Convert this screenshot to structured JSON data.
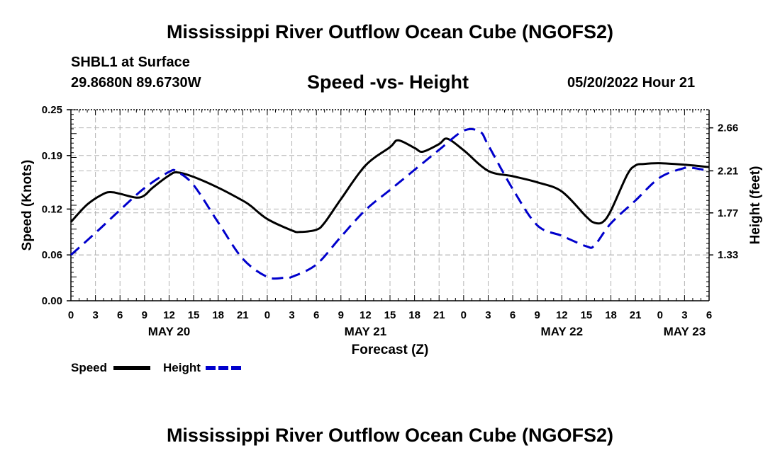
{
  "header": {
    "title": "Mississippi River Outflow Ocean Cube (NGOFS2)",
    "station": "SHBL1 at Surface",
    "coords": "29.8680N  89.6730W",
    "subtitle": "Speed -vs- Height",
    "datetime": "05/20/2022 Hour 21",
    "footer_title": "Mississippi River Outflow Ocean Cube (NGOFS2)"
  },
  "legend": {
    "speed_label": "Speed",
    "height_label": "Height"
  },
  "colors": {
    "speed": "#000000",
    "height": "#0000cc",
    "grid": "#b4b4b4"
  },
  "chart_data": {
    "type": "line",
    "title": "Speed -vs- Height",
    "xlabel": "Forecast (Z)",
    "ylabel": "Speed (Knots)",
    "y2label": "Height (feet)",
    "xlim": [
      0,
      78
    ],
    "ylim": [
      0,
      0.25
    ],
    "y2lim": [
      0.85,
      2.85
    ],
    "x_ticks": [
      0,
      3,
      6,
      9,
      12,
      15,
      18,
      21,
      24,
      27,
      30,
      33,
      36,
      39,
      42,
      45,
      48,
      51,
      54,
      57,
      60,
      63,
      66,
      69,
      72,
      75,
      78
    ],
    "x_tick_labels": [
      "0",
      "3",
      "6",
      "9",
      "12",
      "15",
      "18",
      "21",
      "0",
      "3",
      "6",
      "9",
      "12",
      "15",
      "18",
      "21",
      "0",
      "3",
      "6",
      "9",
      "12",
      "15",
      "18",
      "21",
      "0",
      "3",
      "6"
    ],
    "day_labels": [
      {
        "hour": 12,
        "label": "MAY 20"
      },
      {
        "hour": 36,
        "label": "MAY 21"
      },
      {
        "hour": 60,
        "label": "MAY 22"
      },
      {
        "hour": 75,
        "label": "MAY 23"
      }
    ],
    "y_ticks": [
      0.0,
      0.06,
      0.12,
      0.19,
      0.25
    ],
    "y_tick_labels": [
      "0.00",
      "0.06",
      "0.12",
      "0.19",
      "0.25"
    ],
    "y2_ticks": [
      1.33,
      1.77,
      2.21,
      2.66
    ],
    "y2_tick_labels": [
      "1.33",
      "1.77",
      "2.21",
      "2.66"
    ],
    "grid": true,
    "legend_position": "bottom-left",
    "series": [
      {
        "name": "Speed",
        "axis": "left",
        "style": "solid",
        "x": [
          0,
          2,
          4,
          5,
          6,
          8,
          9,
          10,
          12,
          13,
          15,
          18,
          21,
          22,
          24,
          27,
          28,
          30,
          31,
          33,
          36,
          39,
          40,
          42,
          43,
          45,
          46,
          48,
          51,
          54,
          57,
          60,
          63,
          64,
          65,
          66,
          68,
          69,
          70,
          72,
          75,
          78
        ],
        "values": [
          0.103,
          0.126,
          0.14,
          0.142,
          0.14,
          0.135,
          0.138,
          0.148,
          0.164,
          0.168,
          0.162,
          0.148,
          0.131,
          0.124,
          0.107,
          0.092,
          0.09,
          0.093,
          0.102,
          0.133,
          0.177,
          0.201,
          0.21,
          0.2,
          0.195,
          0.205,
          0.212,
          0.197,
          0.17,
          0.163,
          0.155,
          0.143,
          0.11,
          0.102,
          0.103,
          0.118,
          0.165,
          0.177,
          0.179,
          0.18,
          0.178,
          0.175
        ]
      },
      {
        "name": "Height",
        "axis": "right",
        "style": "dashed",
        "x": [
          0,
          3,
          6,
          9,
          12,
          13,
          15,
          18,
          21,
          24,
          26,
          27,
          30,
          33,
          36,
          39,
          42,
          45,
          48,
          50,
          51,
          54,
          57,
          60,
          63,
          64,
          66,
          69,
          72,
          75,
          76,
          78
        ],
        "values": [
          1.33,
          1.56,
          1.8,
          2.03,
          2.2,
          2.2,
          2.06,
          1.67,
          1.29,
          1.1,
          1.09,
          1.1,
          1.23,
          1.52,
          1.8,
          2.01,
          2.22,
          2.43,
          2.63,
          2.62,
          2.48,
          2.02,
          1.64,
          1.53,
          1.42,
          1.43,
          1.66,
          1.9,
          2.14,
          2.24,
          2.24,
          2.21
        ]
      }
    ]
  }
}
